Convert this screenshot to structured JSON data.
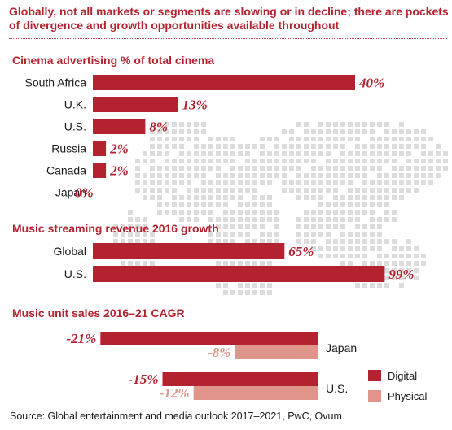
{
  "header": {
    "title": "Globally, not all markets or segments are slowing or in decline; there are pockets of divergence and growth opportunities available throughout"
  },
  "colors": {
    "accent": "#b3232f",
    "digital": "#b3232f",
    "physical": "#e0958a",
    "map_dots": "#dcdcdc"
  },
  "source": "Source: Global entertainment and media outlook 2017–2021, PwC, Ovum",
  "chart_data": [
    {
      "type": "bar",
      "orientation": "horizontal",
      "title": "Cinema advertising % of total cinema",
      "categories": [
        "South Africa",
        "U.K.",
        "U.S.",
        "Russia",
        "Canada",
        "Japan"
      ],
      "values": [
        40,
        13,
        8,
        2,
        2,
        0
      ],
      "value_labels": [
        "40%",
        "13%",
        "8%",
        "2%",
        "2%",
        "0%"
      ]
    },
    {
      "type": "bar",
      "orientation": "horizontal",
      "title": "Music streaming revenue 2016 growth",
      "categories": [
        "Global",
        "U.S."
      ],
      "values": [
        65,
        99
      ],
      "value_labels": [
        "65%",
        "99%"
      ]
    },
    {
      "type": "bar",
      "orientation": "horizontal",
      "title": "Music unit sales 2016–21 CAGR",
      "categories": [
        "Japan",
        "U.S."
      ],
      "series": [
        {
          "name": "Digital",
          "values": [
            -21,
            -15
          ],
          "value_labels": [
            "-21%",
            "-15%"
          ]
        },
        {
          "name": "Physical",
          "values": [
            -8,
            -12
          ],
          "value_labels": [
            "-8%",
            "-12%"
          ]
        }
      ],
      "legend_position": "bottom-right"
    }
  ]
}
